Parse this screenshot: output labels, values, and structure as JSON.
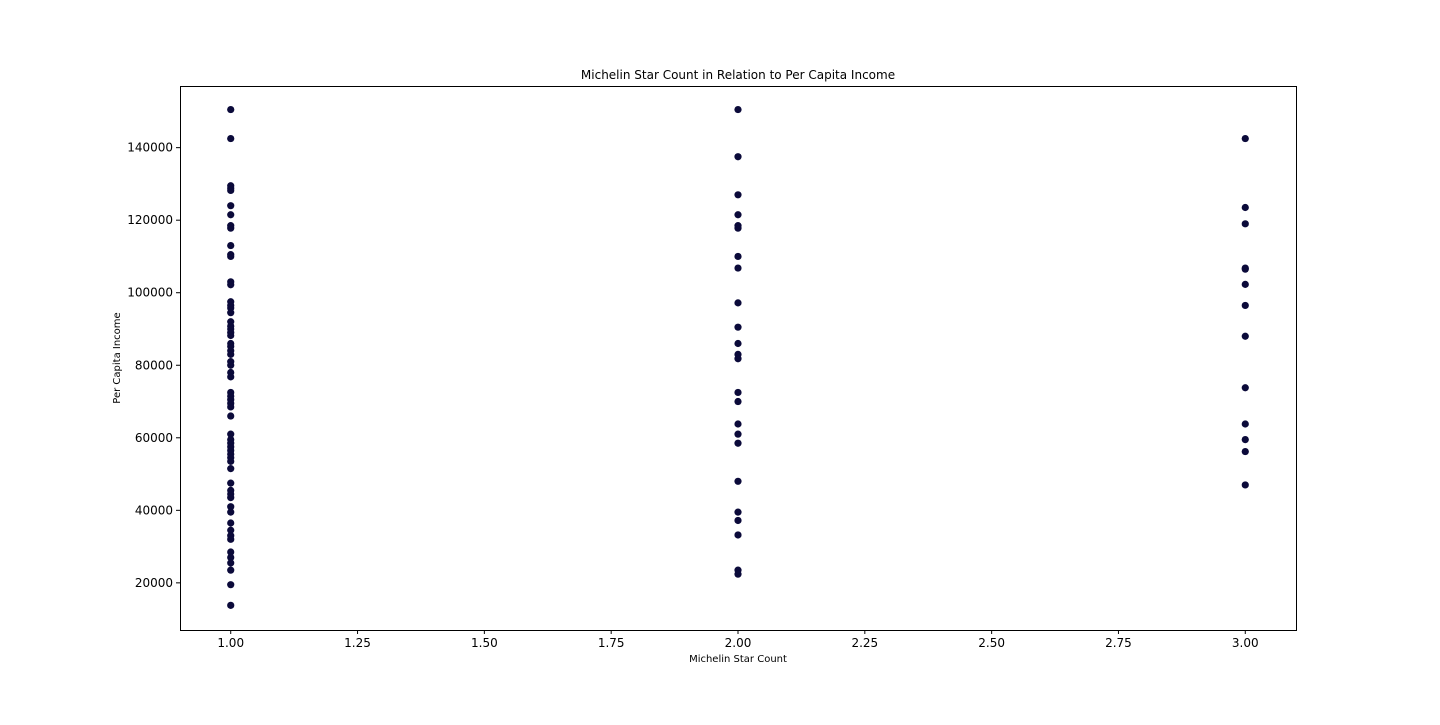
{
  "chart_data": {
    "type": "scatter",
    "title": "Michelin Star Count in Relation to Per Capita Income",
    "xlabel": "Michelin Star Count",
    "ylabel": "Per Capita Income",
    "xlim": [
      0.9,
      3.1
    ],
    "ylim": [
      7000,
      157000
    ],
    "xticks": [
      1.0,
      1.25,
      1.5,
      1.75,
      2.0,
      2.25,
      2.5,
      2.75,
      3.0
    ],
    "xtick_labels": [
      "1.00",
      "1.25",
      "1.50",
      "1.75",
      "2.00",
      "2.25",
      "2.50",
      "2.75",
      "3.00"
    ],
    "yticks": [
      20000,
      40000,
      60000,
      80000,
      100000,
      120000,
      140000
    ],
    "ytick_labels": [
      "20000",
      "40000",
      "60000",
      "80000",
      "100000",
      "120000",
      "140000"
    ],
    "grid": false,
    "marker_color": "#0b0a3a",
    "series": [
      {
        "x": 1.0,
        "y": [
          150500,
          142500,
          129500,
          128800,
          128200,
          124000,
          121500,
          118500,
          117800,
          113000,
          110500,
          110000,
          103000,
          102200,
          97500,
          96500,
          95800,
          94500,
          92000,
          90800,
          90000,
          89000,
          88200,
          86000,
          85200,
          84000,
          83000,
          81000,
          80000,
          78000,
          76800,
          72500,
          71500,
          70500,
          69500,
          68500,
          66000,
          61000,
          59500,
          58500,
          57500,
          56500,
          55500,
          54500,
          53500,
          51500,
          47500,
          45500,
          44500,
          43500,
          41000,
          39500,
          36500,
          34500,
          33000,
          32000,
          28500,
          27000,
          25500,
          23500,
          19500,
          13800
        ]
      },
      {
        "x": 2.0,
        "y": [
          150500,
          137500,
          127000,
          121500,
          118500,
          117800,
          110000,
          106800,
          97200,
          90500,
          86000,
          83000,
          81800,
          72500,
          70000,
          63800,
          61000,
          58500,
          48000,
          39500,
          37200,
          33200,
          23500,
          22400
        ]
      },
      {
        "x": 3.0,
        "y": [
          142500,
          123500,
          119000,
          106800,
          106500,
          102300,
          96500,
          88000,
          73800,
          63800,
          59500,
          56200,
          47000
        ]
      }
    ]
  }
}
